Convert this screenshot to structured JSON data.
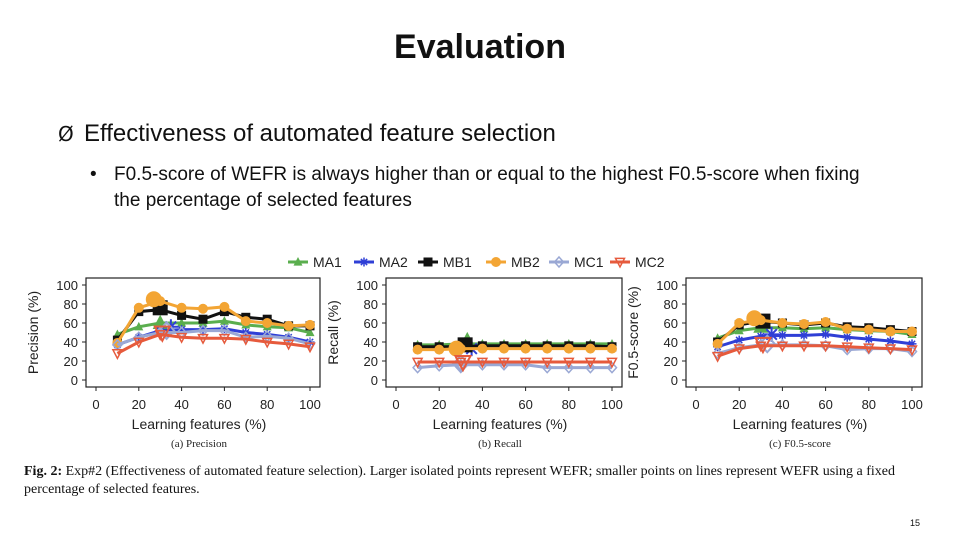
{
  "slide": {
    "title": "Evaluation",
    "bullet_level1": "Effectiveness of automated feature selection",
    "bullet_level1_marker": "Ø",
    "bullet_level2_marker": "•",
    "bullet_level2": "F0.5-score of WEFR is always higher than or equal to the highest F0.5-score when fixing the percentage of selected features",
    "caption_label": "Fig. 2:",
    "caption_text": " Exp#2 (Effectiveness of automated feature selection). Larger isolated points represent WEFR; smaller points on lines represent WEFR using a fixed percentage of selected features.",
    "page_number": "15"
  },
  "colors": {
    "MA1": "#5aae4e",
    "MA2": "#2f3fd6",
    "MB1": "#111111",
    "MB2": "#f3a534",
    "MC1": "#9aa8d4",
    "MC2": "#e65a3c"
  },
  "chart_data": [
    {
      "type": "line",
      "sub_caption": "(a) Precision",
      "xlabel": "Learning features (%)",
      "ylabel": "Precision (%)",
      "xlim": [
        0,
        100
      ],
      "ylim": [
        0,
        100
      ],
      "xticks": [
        0,
        20,
        40,
        60,
        80,
        100
      ],
      "yticks": [
        0,
        20,
        40,
        60,
        80,
        100
      ],
      "x": [
        10,
        20,
        30,
        40,
        50,
        60,
        70,
        80,
        90,
        100
      ],
      "series": [
        {
          "name": "MA1",
          "marker": "triangle",
          "values": [
            48,
            56,
            60,
            60,
            60,
            62,
            58,
            56,
            55,
            50
          ],
          "wefr": {
            "x": 30,
            "y": 60
          }
        },
        {
          "name": "MA2",
          "marker": "star",
          "values": [
            37,
            45,
            52,
            53,
            53,
            54,
            50,
            48,
            45,
            40
          ],
          "wefr": {
            "x": 35,
            "y": 56
          }
        },
        {
          "name": "MB1",
          "marker": "square",
          "values": [
            42,
            72,
            74,
            68,
            64,
            72,
            66,
            64,
            57,
            57
          ],
          "wefr": {
            "x": 30,
            "y": 76
          }
        },
        {
          "name": "MB2",
          "marker": "circle",
          "values": [
            39,
            76,
            83,
            76,
            75,
            77,
            62,
            60,
            57,
            58
          ],
          "wefr": {
            "x": 27,
            "y": 85
          }
        },
        {
          "name": "MC1",
          "marker": "diamond",
          "values": [
            37,
            45,
            50,
            50,
            52,
            52,
            45,
            46,
            44,
            38
          ],
          "wefr": {
            "x": 33,
            "y": 52
          }
        },
        {
          "name": "MC2",
          "marker": "triangle-down",
          "values": [
            28,
            40,
            48,
            45,
            44,
            44,
            43,
            40,
            38,
            35
          ],
          "wefr": {
            "x": 31,
            "y": 50
          }
        }
      ]
    },
    {
      "type": "line",
      "sub_caption": "(b) Recall",
      "xlabel": "Learning features (%)",
      "ylabel": "Recall (%)",
      "xlim": [
        0,
        100
      ],
      "ylim": [
        0,
        100
      ],
      "xticks": [
        0,
        20,
        40,
        60,
        80,
        100
      ],
      "yticks": [
        0,
        20,
        40,
        60,
        80,
        100
      ],
      "x": [
        10,
        20,
        30,
        40,
        50,
        60,
        70,
        80,
        90,
        100
      ],
      "series": [
        {
          "name": "MA1",
          "marker": "triangle",
          "values": [
            37,
            37,
            38,
            38,
            38,
            38,
            38,
            38,
            38,
            38
          ],
          "wefr": {
            "x": 33,
            "y": 42
          }
        },
        {
          "name": "MA2",
          "marker": "star",
          "values": [
            34,
            34,
            35,
            35,
            35,
            35,
            35,
            35,
            35,
            35
          ],
          "wefr": {
            "x": 35,
            "y": 33
          }
        },
        {
          "name": "MB1",
          "marker": "square",
          "values": [
            35,
            35,
            35,
            36,
            36,
            36,
            36,
            36,
            36,
            35
          ],
          "wefr": {
            "x": 32,
            "y": 37
          }
        },
        {
          "name": "MB2",
          "marker": "circle",
          "values": [
            32,
            32,
            33,
            33,
            33,
            33,
            33,
            33,
            33,
            33
          ],
          "wefr": {
            "x": 28,
            "y": 33
          }
        },
        {
          "name": "MC1",
          "marker": "diamond",
          "values": [
            13,
            15,
            16,
            16,
            16,
            16,
            13,
            13,
            13,
            13
          ],
          "wefr": {
            "x": 30,
            "y": 17
          }
        },
        {
          "name": "MC2",
          "marker": "triangle-down",
          "values": [
            19,
            19,
            19,
            19,
            19,
            19,
            19,
            19,
            19,
            19
          ],
          "wefr": {
            "x": 31,
            "y": 19
          }
        }
      ]
    },
    {
      "type": "line",
      "sub_caption": "(c) F0.5-score",
      "xlabel": "Learning features (%)",
      "ylabel": "F0.5-score (%)",
      "xlim": [
        0,
        100
      ],
      "ylim": [
        0,
        100
      ],
      "xticks": [
        0,
        20,
        40,
        60,
        80,
        100
      ],
      "yticks": [
        0,
        20,
        40,
        60,
        80,
        100
      ],
      "x": [
        10,
        20,
        30,
        40,
        50,
        60,
        70,
        80,
        90,
        100
      ],
      "series": [
        {
          "name": "MA1",
          "marker": "triangle",
          "values": [
            44,
            52,
            55,
            55,
            54,
            55,
            53,
            52,
            51,
            48
          ],
          "wefr": {
            "x": 30,
            "y": 56
          }
        },
        {
          "name": "MA2",
          "marker": "star",
          "values": [
            35,
            42,
            46,
            47,
            47,
            48,
            45,
            43,
            41,
            38
          ],
          "wefr": {
            "x": 35,
            "y": 48
          }
        },
        {
          "name": "MB1",
          "marker": "square",
          "values": [
            40,
            58,
            62,
            60,
            58,
            60,
            56,
            55,
            53,
            51
          ],
          "wefr": {
            "x": 31,
            "y": 62
          }
        },
        {
          "name": "MB2",
          "marker": "circle",
          "values": [
            38,
            60,
            63,
            60,
            59,
            61,
            54,
            53,
            51,
            51
          ],
          "wefr": {
            "x": 27,
            "y": 65
          }
        },
        {
          "name": "MC1",
          "marker": "diamond",
          "values": [
            28,
            34,
            37,
            37,
            37,
            36,
            32,
            33,
            33,
            30
          ],
          "wefr": {
            "x": 33,
            "y": 38
          }
        },
        {
          "name": "MC2",
          "marker": "triangle-down",
          "values": [
            25,
            33,
            36,
            36,
            36,
            36,
            35,
            34,
            33,
            32
          ],
          "wefr": {
            "x": 31,
            "y": 38
          }
        }
      ]
    }
  ]
}
